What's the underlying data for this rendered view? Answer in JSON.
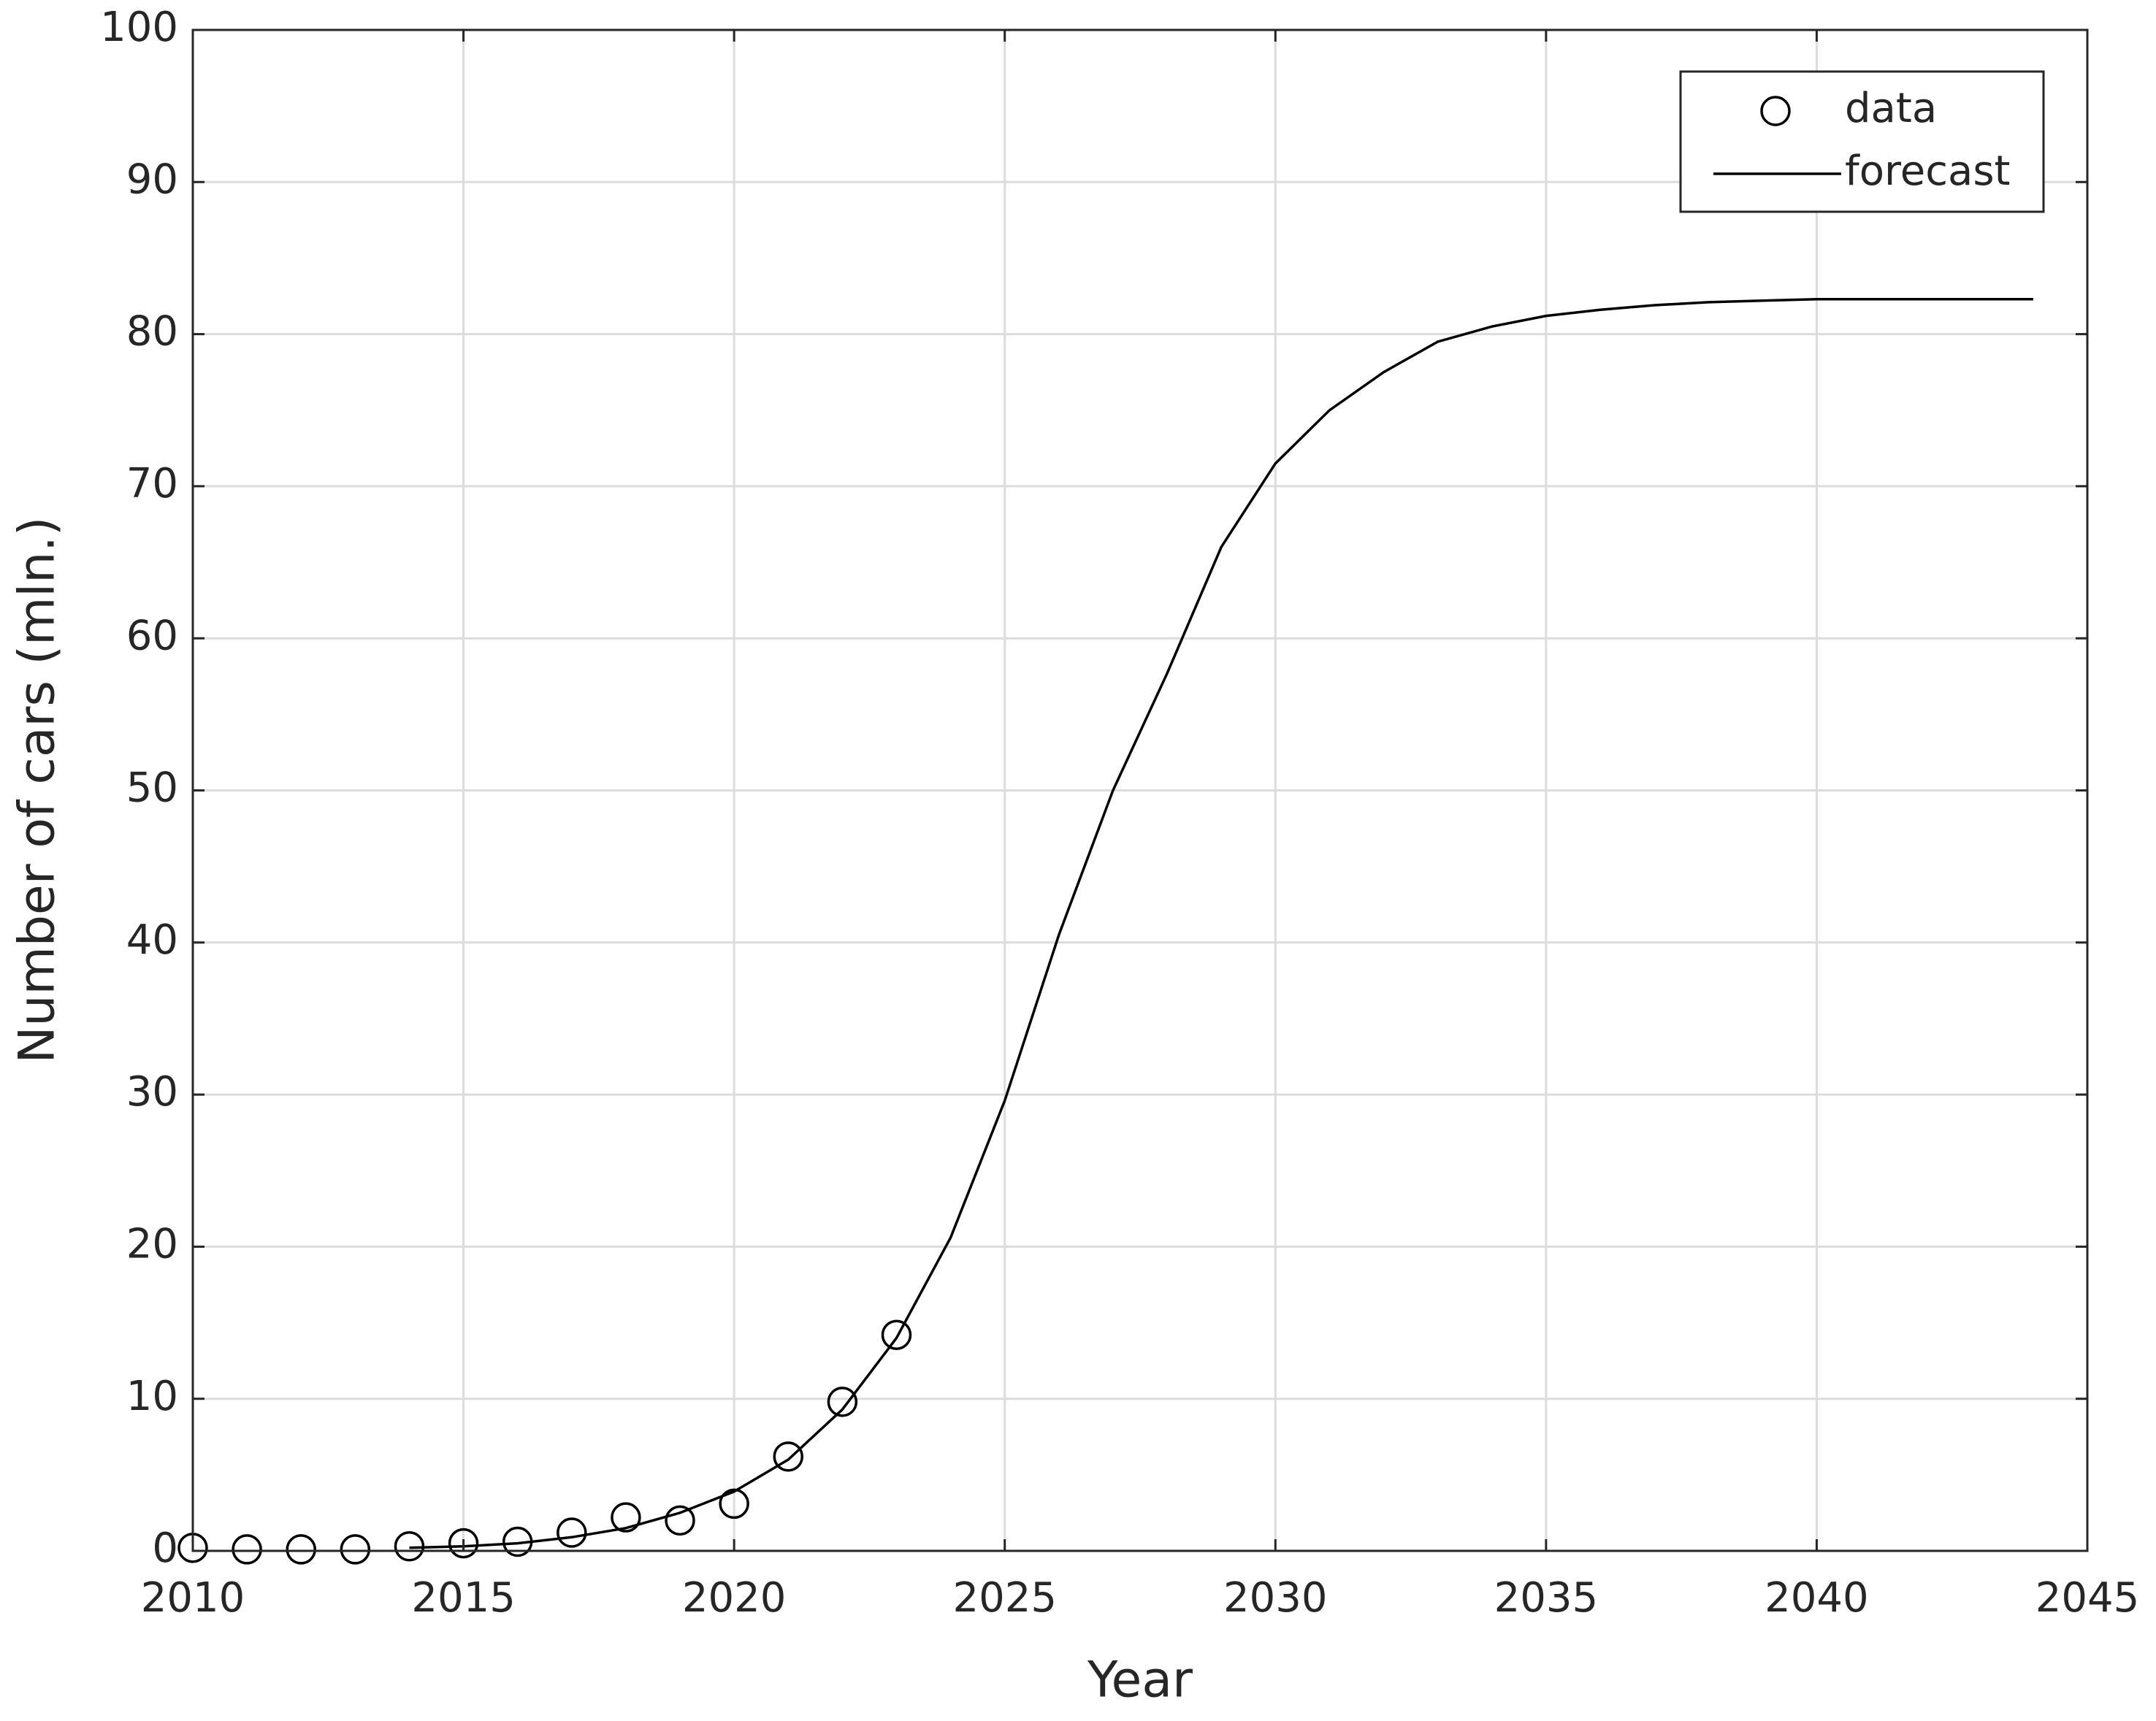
{
  "chart_data": {
    "type": "line",
    "xlabel": "Year",
    "ylabel": "Number of cars (mln.)",
    "xlim": [
      2010,
      2045
    ],
    "xticks": [
      2010,
      2015,
      2020,
      2025,
      2030,
      2035,
      2040,
      2045
    ],
    "ylim": [
      0,
      100
    ],
    "yticks": [
      0,
      10,
      20,
      30,
      40,
      50,
      60,
      70,
      80,
      90,
      100
    ],
    "grid": true,
    "legend": "upper right",
    "series": [
      {
        "name": "data",
        "color": "#000000",
        "marker": "circle",
        "line": false,
        "x": [
          2010,
          2011,
          2012,
          2013,
          2014,
          2015,
          2016,
          2017,
          2018,
          2019,
          2020,
          2021,
          2022,
          2023
        ],
        "values": [
          0.2,
          0.1,
          0.1,
          0.1,
          0.3,
          0.5,
          0.6,
          1.2,
          2.2,
          2.0,
          3.1,
          6.2,
          9.8,
          14.2
        ]
      },
      {
        "name": "forecast",
        "color": "#000000",
        "marker": null,
        "line": true,
        "x": [
          2014,
          2015,
          2016,
          2017,
          2018,
          2019,
          2020,
          2021,
          2022,
          2023,
          2024,
          2025,
          2026,
          2027,
          2028,
          2029,
          2030,
          2031,
          2032,
          2033,
          2034,
          2035,
          2036,
          2037,
          2038,
          2039,
          2040,
          2041,
          2042,
          2043,
          2044
        ],
        "values": [
          0.2,
          0.3,
          0.5,
          0.9,
          1.5,
          2.5,
          3.9,
          6.0,
          9.3,
          14.0,
          20.6,
          29.6,
          40.5,
          50.0,
          57.7,
          66.0,
          71.5,
          75.0,
          77.5,
          79.5,
          80.5,
          81.2,
          81.6,
          81.9,
          82.1,
          82.2,
          82.3,
          82.3,
          82.3,
          82.3,
          82.3
        ]
      }
    ]
  }
}
